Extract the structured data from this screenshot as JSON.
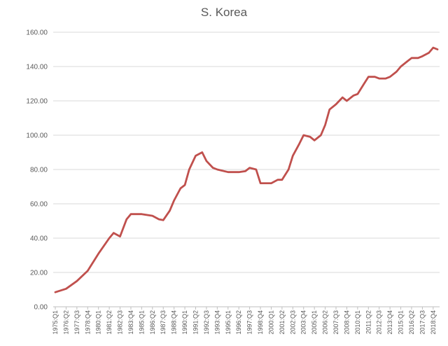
{
  "chart_data": {
    "type": "line",
    "title": "S. Korea",
    "xlabel": "",
    "ylabel": "",
    "ylim": [
      0,
      160
    ],
    "y_ticks": [
      "0.00",
      "20.00",
      "40.00",
      "60.00",
      "80.00",
      "100.00",
      "120.00",
      "140.00",
      "160.00"
    ],
    "x_tick_labels": [
      "1975:Q1",
      "1976:Q2",
      "1977:Q3",
      "1978:Q4",
      "1980:Q1",
      "1981:Q2",
      "1982:Q3",
      "1983:Q4",
      "1985:Q1",
      "1986:Q2",
      "1987:Q3",
      "1988:Q4",
      "1990:Q1",
      "1991:Q2",
      "1992:Q3",
      "1993:Q4",
      "1995:Q1",
      "1996:Q2",
      "1997:Q3",
      "1998:Q4",
      "2000:Q1",
      "2001:Q2",
      "2002:Q3",
      "2003:Q4",
      "2005:Q1",
      "2006:Q2",
      "2007:Q3",
      "2008:Q4",
      "2010:Q1",
      "2011:Q2",
      "2012:Q3",
      "2013:Q4",
      "2015:Q1",
      "2016:Q2",
      "2017:Q3",
      "2018:Q4"
    ],
    "grid": true,
    "legend": "none",
    "colors": {
      "line": "#c0504d",
      "grid": "#d9d9d9",
      "axis": "#bfbfbf",
      "text": "#595959"
    },
    "series": [
      {
        "x": [
          "1975:Q1",
          "1976:Q2",
          "1977:Q3",
          "1978:Q4",
          "1980:Q1",
          "1981:Q2",
          "1981:Q4",
          "1982:Q3",
          "1983:Q2",
          "1983:Q4",
          "1985:Q1",
          "1986:Q2",
          "1987:Q1",
          "1987:Q3",
          "1988:Q2",
          "1988:Q4",
          "1989:Q3",
          "1990:Q1",
          "1990:Q3",
          "1991:Q2",
          "1992:Q1",
          "1992:Q3",
          "1993:Q2",
          "1993:Q4",
          "1995:Q1",
          "1996:Q2",
          "1997:Q1",
          "1997:Q3",
          "1998:Q2",
          "1998:Q4",
          "2000:Q1",
          "2000:Q4",
          "2001:Q2",
          "2002:Q1",
          "2002:Q3",
          "2003:Q2",
          "2003:Q4",
          "2004:Q3",
          "2005:Q1",
          "2005:Q4",
          "2006:Q2",
          "2006:Q4",
          "2007:Q3",
          "2008:Q2",
          "2008:Q4",
          "2009:Q3",
          "2010:Q1",
          "2010:Q4",
          "2011:Q2",
          "2012:Q1",
          "2012:Q3",
          "2013:Q2",
          "2013:Q4",
          "2014:Q3",
          "2015:Q1",
          "2015:Q4",
          "2016:Q2",
          "2017:Q1",
          "2017:Q3",
          "2018:Q2",
          "2018:Q4",
          "2019:Q2"
        ],
        "values": [
          8.5,
          10.5,
          15,
          21,
          31,
          40,
          43,
          41,
          51,
          54,
          54,
          53,
          51,
          50.5,
          56,
          62,
          69,
          71,
          80,
          88,
          90,
          85,
          81,
          80,
          78.5,
          78.5,
          79,
          81,
          80,
          72,
          72,
          74,
          74,
          80,
          88,
          95,
          100,
          99,
          97,
          100,
          106,
          115,
          118,
          122,
          120,
          123,
          124,
          130,
          134,
          134,
          133,
          133,
          134,
          137,
          140,
          143,
          145,
          145,
          146,
          148,
          151,
          150
        ]
      }
    ]
  }
}
